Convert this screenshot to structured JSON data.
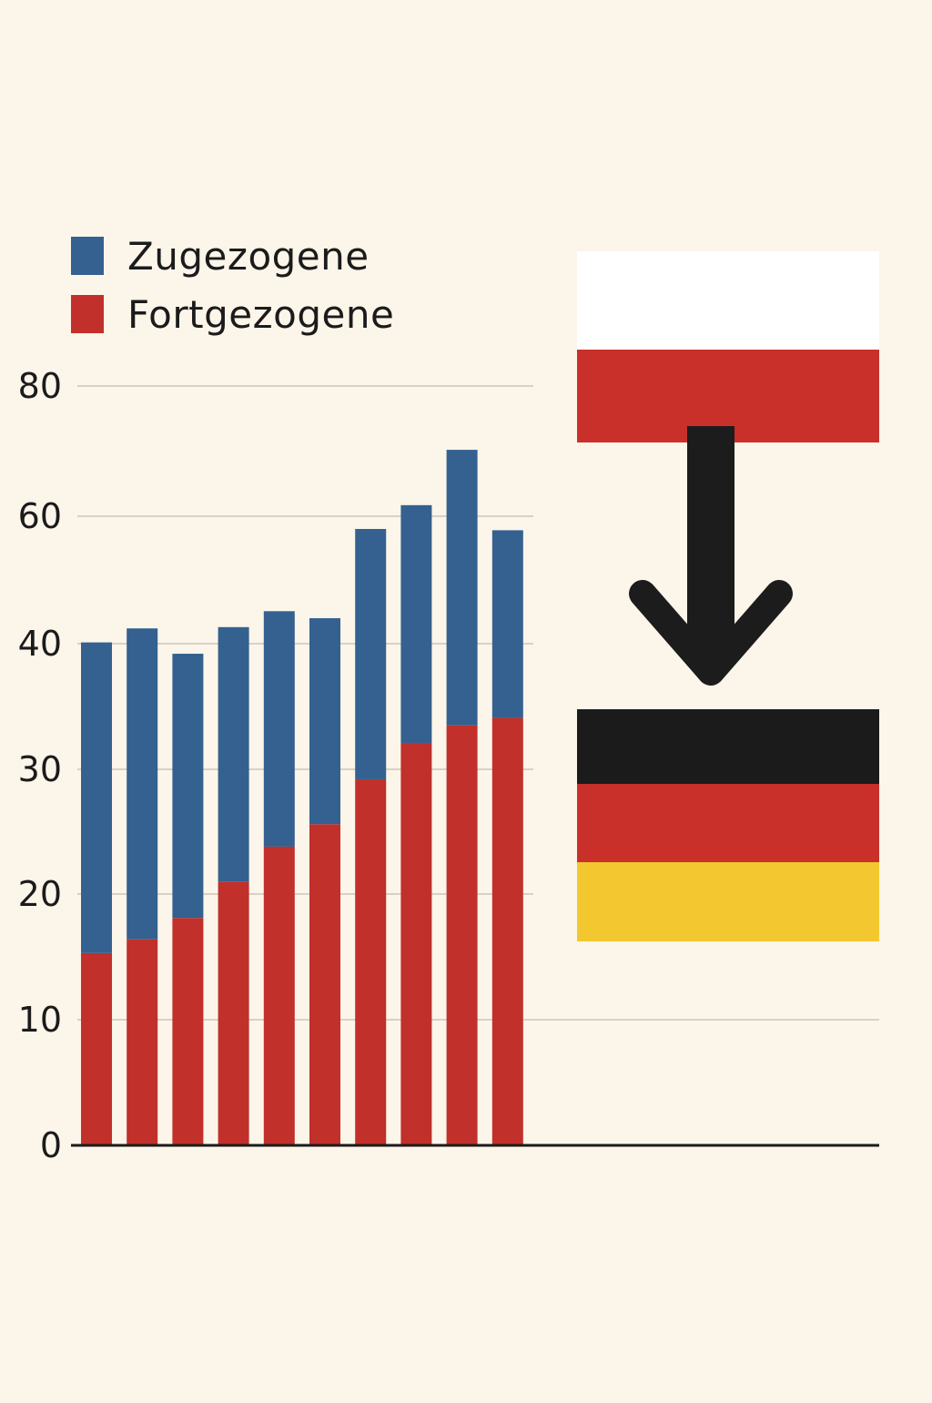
{
  "colors": {
    "background": "#fcf5ea",
    "zugezogene": "#34618f",
    "fortgezogene": "#c1302a",
    "grid": "#d7d1c6",
    "axis": "#1b1b1b",
    "arrow": "#1c1c1c",
    "flag_white": "#ffffff",
    "flag_red": "#c9302a",
    "flag_black": "#1b1b1b",
    "flag_gold": "#f3c72f"
  },
  "legend": {
    "items": [
      {
        "label": "Zugezogene",
        "color": "#34618f"
      },
      {
        "label": "Fortgezogene",
        "color": "#c1302a"
      }
    ],
    "placement": "top-left"
  },
  "illustration": {
    "icons": [
      "poland-flag-icon",
      "arrow-down-icon",
      "germany-flag-icon"
    ]
  },
  "chart_data": {
    "type": "bar",
    "stacked": true,
    "y_ticks": [
      "0",
      "10",
      "20",
      "30",
      "40",
      "60",
      "80"
    ],
    "y_tick_values": [
      0,
      10,
      20,
      30,
      40,
      60,
      80
    ],
    "grid": true,
    "xlabel": "",
    "ylabel": "",
    "title": "",
    "series": [
      {
        "name": "Fortgezogene",
        "values": [
          15.3,
          16.4,
          18.1,
          21.0,
          23.8,
          25.6,
          29.2,
          32.1,
          33.5,
          34.1
        ]
      },
      {
        "name": "Zugezogene",
        "values": [
          24.9,
          26.0,
          21.1,
          21.6,
          21.3,
          18.4,
          28.8,
          29.6,
          36.7,
          23.7
        ]
      }
    ]
  }
}
